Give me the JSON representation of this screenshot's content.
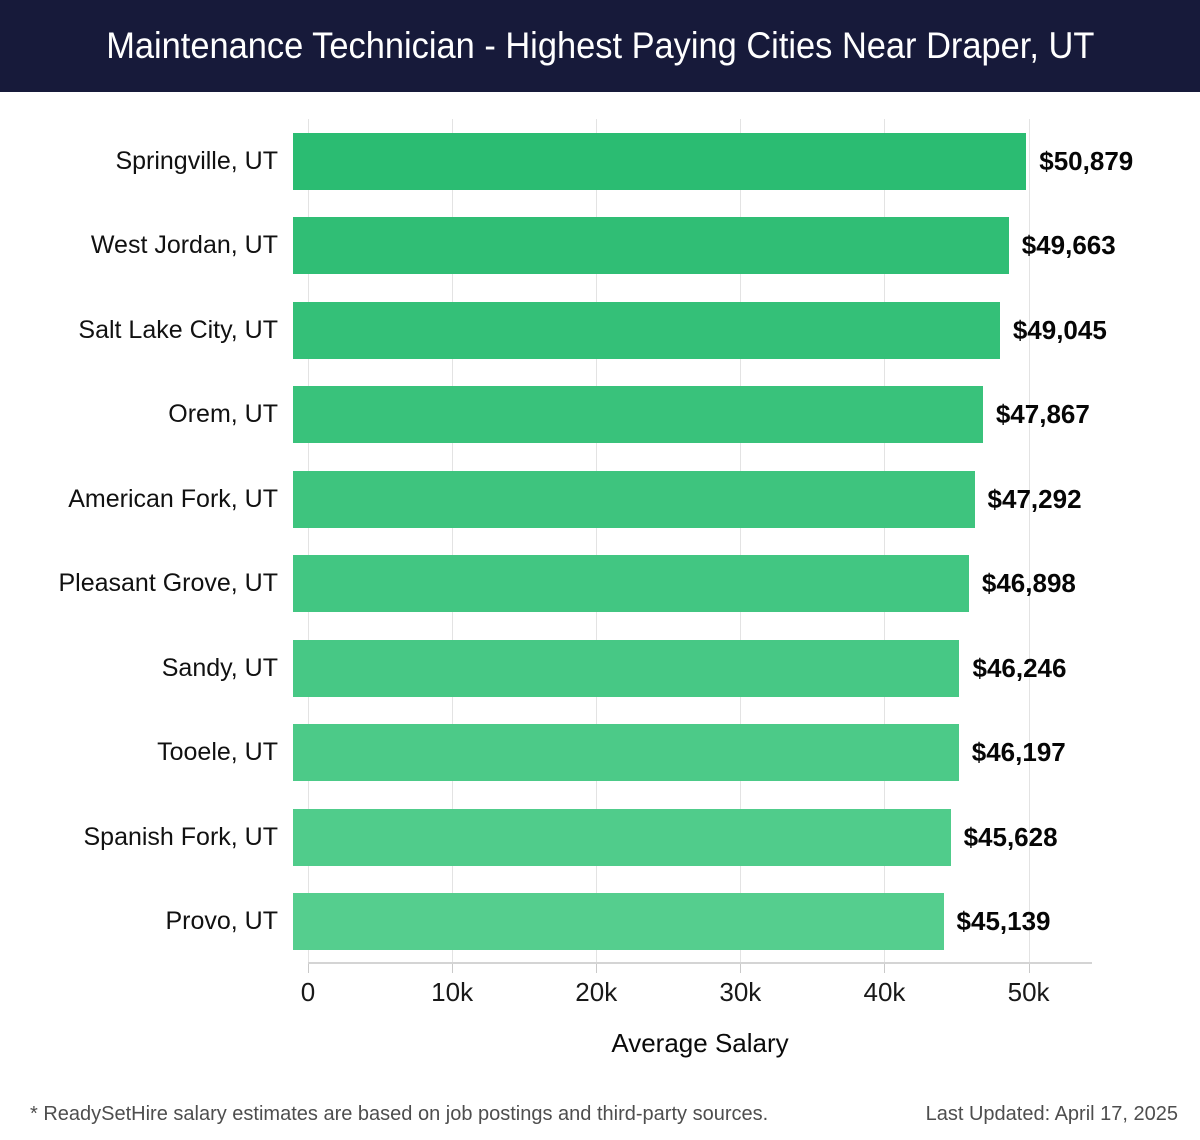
{
  "header": {
    "title": "Maintenance Technician - Highest Paying Cities Near Draper, UT",
    "bg_color": "#171a3a",
    "text_color": "#ffffff"
  },
  "chart_data": {
    "type": "bar",
    "orientation": "horizontal",
    "title": "Maintenance Technician - Highest Paying Cities Near Draper, UT",
    "categories": [
      "Springville, UT",
      "West Jordan, UT",
      "Salt Lake City, UT",
      "Orem, UT",
      "American Fork, UT",
      "Pleasant Grove, UT",
      "Sandy, UT",
      "Tooele, UT",
      "Spanish Fork, UT",
      "Provo, UT"
    ],
    "values": [
      50879,
      49663,
      49045,
      47867,
      47292,
      46898,
      46246,
      46197,
      45628,
      45139
    ],
    "value_labels": [
      "$50,879",
      "$49,663",
      "$49,045",
      "$47,867",
      "$47,292",
      "$46,898",
      "$46,246",
      "$46,197",
      "$45,628",
      "$45,139"
    ],
    "bar_colors": [
      "#2bbc72",
      "#30be75",
      "#34c078",
      "#39c27b",
      "#3ec47e",
      "#42c682",
      "#47c885",
      "#4cca88",
      "#50cc8b",
      "#55ce8e"
    ],
    "xlabel": "Average Salary",
    "xlim": [
      0,
      54400
    ],
    "xticks": [
      {
        "value": 0,
        "label": "0"
      },
      {
        "value": 10000,
        "label": "10k"
      },
      {
        "value": 20000,
        "label": "20k"
      },
      {
        "value": 30000,
        "label": "30k"
      },
      {
        "value": 40000,
        "label": "40k"
      },
      {
        "value": 50000,
        "label": "50k"
      }
    ],
    "grid": true,
    "gridline_color": "#e3e3e3",
    "legend": "none"
  },
  "footer": {
    "disclaimer": "* ReadySetHire salary estimates are based on job postings and third-party sources.",
    "last_updated": "Last Updated: April 17, 2025"
  }
}
